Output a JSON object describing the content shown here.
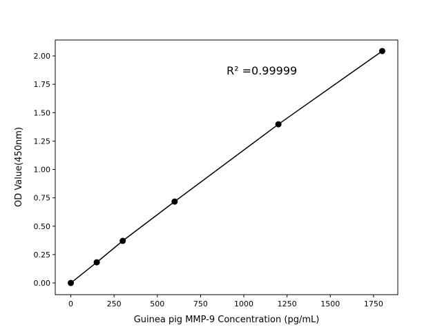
{
  "chart_data": {
    "type": "line",
    "title": "",
    "xlabel": "Guinea pig MMP-9 Concentration (pg/mL)",
    "ylabel": "OD Value(450nm)",
    "annotation": "R² =0.99999",
    "x": [
      0,
      150,
      300,
      600,
      1200,
      1800
    ],
    "y": [
      0.0,
      0.182,
      0.371,
      0.717,
      1.398,
      2.043
    ],
    "xlim": [
      -90,
      1890
    ],
    "ylim": [
      -0.103,
      2.14
    ],
    "xticks": [
      0,
      250,
      500,
      750,
      1000,
      1250,
      1500,
      1750
    ],
    "xtick_labels": [
      "0",
      "250",
      "500",
      "750",
      "1000",
      "1250",
      "1500",
      "1750"
    ],
    "yticks": [
      0,
      0.25,
      0.5,
      0.75,
      1.0,
      1.25,
      1.5,
      1.75,
      2.0
    ],
    "ytick_labels": [
      "0.00",
      "0.25",
      "0.50",
      "0.75",
      "1.00",
      "1.25",
      "1.50",
      "1.75",
      "2.00"
    ],
    "grid": false,
    "line_color": "#000000",
    "marker": "circle"
  }
}
